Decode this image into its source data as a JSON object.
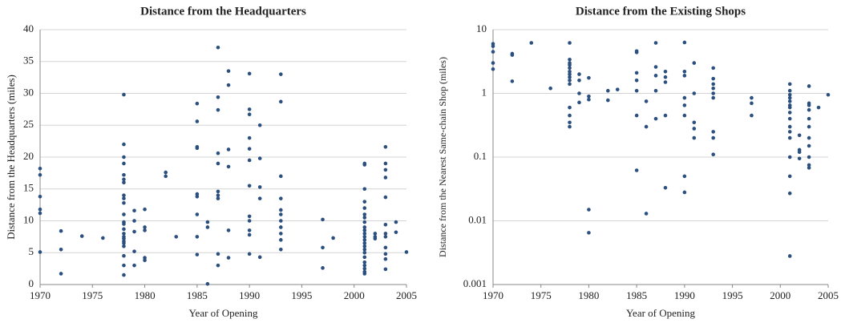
{
  "chart_data": [
    {
      "type": "scatter",
      "title": "Distance from the Headquarters",
      "x_label": "Year of Opening",
      "y_label": "Distance from the Headquarters (miles)",
      "color": "#2b4f7e",
      "grid": true,
      "log_scale": false,
      "xlim": [
        1970,
        2005
      ],
      "xticks": [
        1970,
        1975,
        1980,
        1985,
        1990,
        1995,
        2000,
        2005
      ],
      "ylim": [
        0,
        40
      ],
      "yticks": [
        0,
        5,
        10,
        15,
        20,
        25,
        30,
        35,
        40
      ],
      "x": [
        1970,
        1970,
        1970,
        1970,
        1970,
        1970,
        1972,
        1972,
        1972,
        1974,
        1976,
        1978,
        1978,
        1978,
        1978,
        1978,
        1978,
        1978,
        1978,
        1978,
        1978,
        1978,
        1978,
        1978,
        1978,
        1978,
        1978,
        1978,
        1978,
        1978,
        1978,
        1978,
        1978,
        1978,
        1979,
        1979,
        1979,
        1979,
        1979,
        1980,
        1980,
        1980,
        1980,
        1980,
        1982,
        1982,
        1983,
        1985,
        1985,
        1985,
        1985,
        1985,
        1985,
        1985,
        1985,
        1985,
        1986,
        1986,
        1986,
        1987,
        1987,
        1987,
        1987,
        1987,
        1987,
        1987,
        1987,
        1987,
        1987,
        1988,
        1988,
        1988,
        1988,
        1988,
        1988,
        1990,
        1990,
        1990,
        1990,
        1990,
        1990,
        1990,
        1990,
        1990,
        1990,
        1990,
        1990,
        1991,
        1991,
        1991,
        1991,
        1991,
        1993,
        1993,
        1993,
        1993,
        1993,
        1993,
        1993,
        1993,
        1993,
        1993,
        1993,
        1997,
        1997,
        1997,
        1998,
        2001,
        2001,
        2001,
        2001,
        2001,
        2001,
        2001,
        2001,
        2001,
        2001,
        2001,
        2001,
        2001,
        2001,
        2001,
        2001,
        2001,
        2001,
        2001,
        2001,
        2001,
        2001,
        2001,
        2002,
        2002,
        2002,
        2003,
        2003,
        2003,
        2003,
        2003,
        2003,
        2003,
        2003,
        2003,
        2003,
        2003,
        2003,
        2004,
        2004,
        2005
      ],
      "y": [
        18.2,
        17.2,
        13.8,
        11.8,
        11.2,
        5.1,
        8.4,
        5.5,
        1.7,
        7.6,
        7.3,
        29.8,
        22,
        20,
        19,
        17.2,
        16.5,
        16,
        14,
        13.5,
        12.8,
        11,
        9.8,
        9.5,
        8.7,
        8,
        7.5,
        7.2,
        6.8,
        6.5,
        6,
        4.5,
        3,
        1.5,
        11.6,
        10,
        8.3,
        5.2,
        3,
        11.8,
        9,
        8.5,
        4.2,
        3.8,
        17.6,
        17,
        7.5,
        28.4,
        25.6,
        21.6,
        21.4,
        14.2,
        13.8,
        11,
        7.5,
        4.7,
        9.8,
        9,
        0.1,
        37.2,
        29.4,
        27.4,
        20.6,
        19,
        14.6,
        14,
        13.5,
        4.8,
        3,
        33.5,
        31.3,
        21.2,
        18.5,
        8.5,
        4.2,
        33.1,
        27.5,
        26.7,
        23,
        21.3,
        19.5,
        15.5,
        10.7,
        10,
        8.5,
        7.8,
        4.8,
        25,
        19.8,
        15.3,
        13.5,
        4.3,
        33,
        28.7,
        17,
        13.5,
        11.7,
        11,
        10,
        9,
        8,
        7,
        5.5,
        10.2,
        5.8,
        2.6,
        7.3,
        19,
        18.8,
        15,
        13,
        12,
        11,
        10.5,
        9.8,
        9,
        8.5,
        8,
        7.5,
        7,
        6.5,
        6,
        5.5,
        5,
        4.3,
        3.5,
        3,
        2.5,
        2,
        1.7,
        8,
        7.5,
        7.2,
        21.6,
        19,
        18,
        16.8,
        13.7,
        9.4,
        8,
        7.5,
        5.8,
        4.8,
        4,
        2.4,
        9.8,
        8.2,
        5.1
      ]
    },
    {
      "type": "scatter",
      "title": "Distance from the Existing Shops",
      "x_label": "Year of Opening",
      "y_label": "Distance from the Nearest Same-chain Shop (miles)",
      "color": "#2b4f7e",
      "grid": true,
      "log_scale": true,
      "xlim": [
        1970,
        2005
      ],
      "xticks": [
        1970,
        1975,
        1980,
        1985,
        1990,
        1995,
        2000,
        2005
      ],
      "ylim": [
        0.001,
        10
      ],
      "yticks": [
        0.001,
        0.01,
        0.1,
        1,
        10
      ],
      "x": [
        1970,
        1970,
        1970,
        1970,
        1970,
        1972,
        1972,
        1972,
        1974,
        1976,
        1978,
        1978,
        1978,
        1978,
        1978,
        1978,
        1978,
        1978,
        1978,
        1978,
        1978,
        1978,
        1978,
        1978,
        1979,
        1979,
        1979,
        1979,
        1980,
        1980,
        1980,
        1980,
        1980,
        1982,
        1982,
        1983,
        1985,
        1985,
        1985,
        1985,
        1985,
        1985,
        1985,
        1986,
        1986,
        1986,
        1987,
        1987,
        1987,
        1987,
        1987,
        1988,
        1988,
        1988,
        1988,
        1988,
        1990,
        1990,
        1990,
        1990,
        1990,
        1990,
        1990,
        1990,
        1991,
        1991,
        1991,
        1991,
        1991,
        1993,
        1993,
        1993,
        1993,
        1993,
        1993,
        1993,
        1993,
        1993,
        1997,
        1997,
        1997,
        2001,
        2001,
        2001,
        2001,
        2001,
        2001,
        2001,
        2001,
        2001,
        2001,
        2001,
        2001,
        2001,
        2001,
        2001,
        2001,
        2002,
        2002,
        2002,
        2002,
        2003,
        2003,
        2003,
        2003,
        2003,
        2003,
        2003,
        2003,
        2003,
        2003,
        2003,
        2004,
        2005
      ],
      "y": [
        6,
        5.5,
        4.5,
        3,
        2.4,
        4.2,
        4,
        1.55,
        6.2,
        1.2,
        6.2,
        3.4,
        3,
        2.8,
        2.5,
        2.2,
        2,
        1.8,
        1.6,
        1.4,
        0.6,
        0.45,
        0.35,
        0.3,
        2,
        1.6,
        1,
        0.72,
        1.75,
        0.9,
        0.8,
        0.015,
        0.0065,
        1.1,
        0.78,
        1.15,
        4.6,
        4.4,
        2.1,
        1.6,
        1.1,
        0.45,
        0.062,
        0.75,
        0.3,
        0.013,
        6.2,
        2.6,
        1.9,
        1.1,
        0.4,
        2.2,
        1.8,
        1.5,
        0.45,
        0.033,
        6.3,
        2.2,
        1.9,
        0.85,
        0.65,
        0.45,
        0.05,
        0.028,
        3,
        1,
        0.35,
        0.28,
        0.2,
        2.5,
        1.7,
        1.4,
        1.2,
        1,
        0.85,
        0.25,
        0.2,
        0.11,
        0.85,
        0.7,
        0.45,
        1.4,
        1.1,
        0.95,
        0.85,
        0.75,
        0.65,
        0.6,
        0.5,
        0.4,
        0.3,
        0.25,
        0.2,
        0.1,
        0.05,
        0.027,
        0.0028,
        0.22,
        0.13,
        0.12,
        0.095,
        1.3,
        0.7,
        0.65,
        0.55,
        0.4,
        0.3,
        0.2,
        0.15,
        0.1,
        0.075,
        0.068,
        0.6,
        0.95
      ]
    }
  ]
}
